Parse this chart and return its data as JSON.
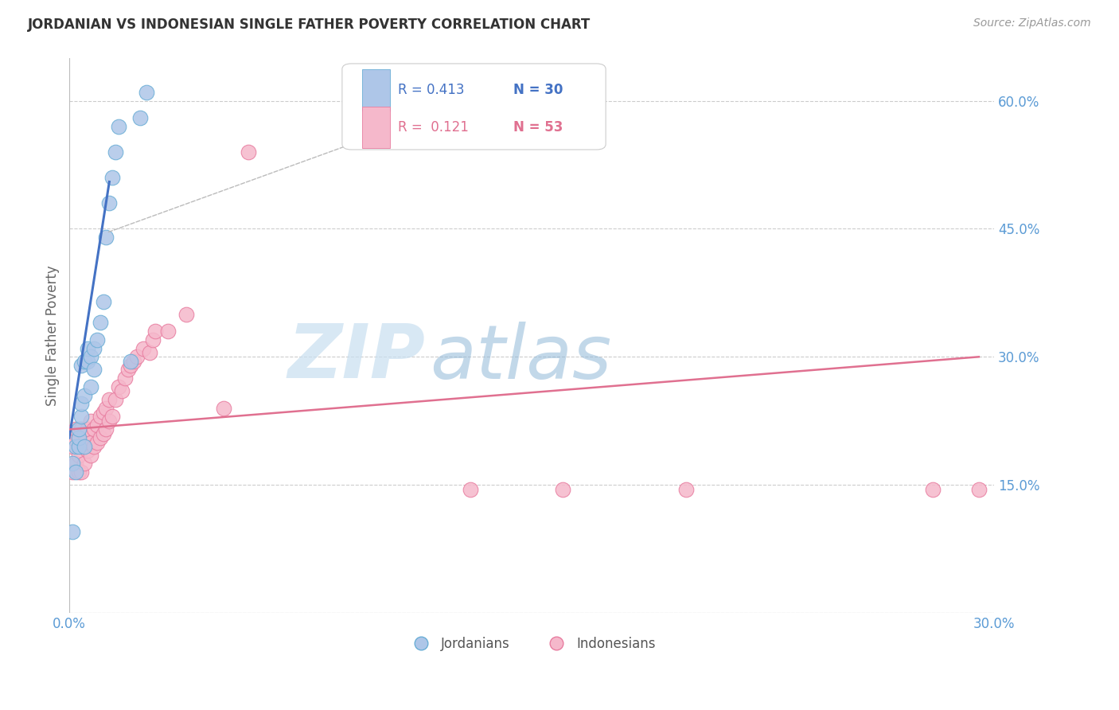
{
  "title": "JORDANIAN VS INDONESIAN SINGLE FATHER POVERTY CORRELATION CHART",
  "source": "Source: ZipAtlas.com",
  "ylabel": "Single Father Poverty",
  "xlim": [
    0.0,
    0.3
  ],
  "ylim": [
    0.0,
    0.65
  ],
  "yticks": [
    0.0,
    0.15,
    0.3,
    0.45,
    0.6
  ],
  "ytick_labels": [
    "",
    "15.0%",
    "30.0%",
    "45.0%",
    "60.0%"
  ],
  "xticks": [
    0.0,
    0.05,
    0.1,
    0.15,
    0.2,
    0.25,
    0.3
  ],
  "xtick_labels": [
    "0.0%",
    "",
    "",
    "",
    "",
    "",
    "30.0%"
  ],
  "grid_color": "#cccccc",
  "background_color": "#ffffff",
  "jordanians_color": "#aec6e8",
  "jordanians_edge_color": "#6aaed6",
  "indonesians_color": "#f5b8cb",
  "indonesians_edge_color": "#e87da0",
  "jordan_line_color": "#4472c4",
  "indonesia_line_color": "#e07090",
  "label_color": "#5b9bd5",
  "watermark": "ZIPatlas",
  "watermark_zip_color": "#c8dff0",
  "watermark_atlas_color": "#90b8d8",
  "legend_R_jordan": "R = 0.413",
  "legend_N_jordan": "N = 30",
  "legend_R_indonesia": "R =  0.121",
  "legend_N_indonesia": "N = 53",
  "jordanians_x": [
    0.001,
    0.001,
    0.002,
    0.002,
    0.003,
    0.003,
    0.003,
    0.004,
    0.004,
    0.004,
    0.005,
    0.005,
    0.005,
    0.006,
    0.006,
    0.007,
    0.007,
    0.008,
    0.008,
    0.009,
    0.01,
    0.011,
    0.012,
    0.013,
    0.014,
    0.015,
    0.016,
    0.02,
    0.023,
    0.025
  ],
  "jordanians_y": [
    0.095,
    0.175,
    0.165,
    0.195,
    0.195,
    0.205,
    0.215,
    0.23,
    0.245,
    0.29,
    0.195,
    0.255,
    0.295,
    0.295,
    0.31,
    0.265,
    0.3,
    0.285,
    0.31,
    0.32,
    0.34,
    0.365,
    0.44,
    0.48,
    0.51,
    0.54,
    0.57,
    0.295,
    0.58,
    0.61
  ],
  "indonesians_x": [
    0.001,
    0.001,
    0.001,
    0.002,
    0.002,
    0.003,
    0.003,
    0.003,
    0.004,
    0.004,
    0.004,
    0.005,
    0.005,
    0.005,
    0.006,
    0.006,
    0.007,
    0.007,
    0.007,
    0.008,
    0.008,
    0.009,
    0.009,
    0.01,
    0.01,
    0.011,
    0.011,
    0.012,
    0.012,
    0.013,
    0.013,
    0.014,
    0.015,
    0.016,
    0.017,
    0.018,
    0.019,
    0.02,
    0.021,
    0.022,
    0.024,
    0.026,
    0.027,
    0.028,
    0.032,
    0.038,
    0.05,
    0.058,
    0.13,
    0.16,
    0.2,
    0.28,
    0.295
  ],
  "indonesians_y": [
    0.165,
    0.195,
    0.205,
    0.175,
    0.215,
    0.165,
    0.185,
    0.205,
    0.165,
    0.195,
    0.215,
    0.175,
    0.195,
    0.21,
    0.19,
    0.215,
    0.185,
    0.2,
    0.225,
    0.195,
    0.215,
    0.2,
    0.22,
    0.205,
    0.23,
    0.21,
    0.235,
    0.215,
    0.24,
    0.225,
    0.25,
    0.23,
    0.25,
    0.265,
    0.26,
    0.275,
    0.285,
    0.29,
    0.295,
    0.3,
    0.31,
    0.305,
    0.32,
    0.33,
    0.33,
    0.35,
    0.24,
    0.54,
    0.145,
    0.145,
    0.145,
    0.145,
    0.145
  ],
  "jordan_line_x": [
    0.0,
    0.013
  ],
  "jordan_line_y": [
    0.205,
    0.505
  ],
  "indonesia_line_x": [
    0.0,
    0.295
  ],
  "indonesia_line_y": [
    0.215,
    0.3
  ]
}
